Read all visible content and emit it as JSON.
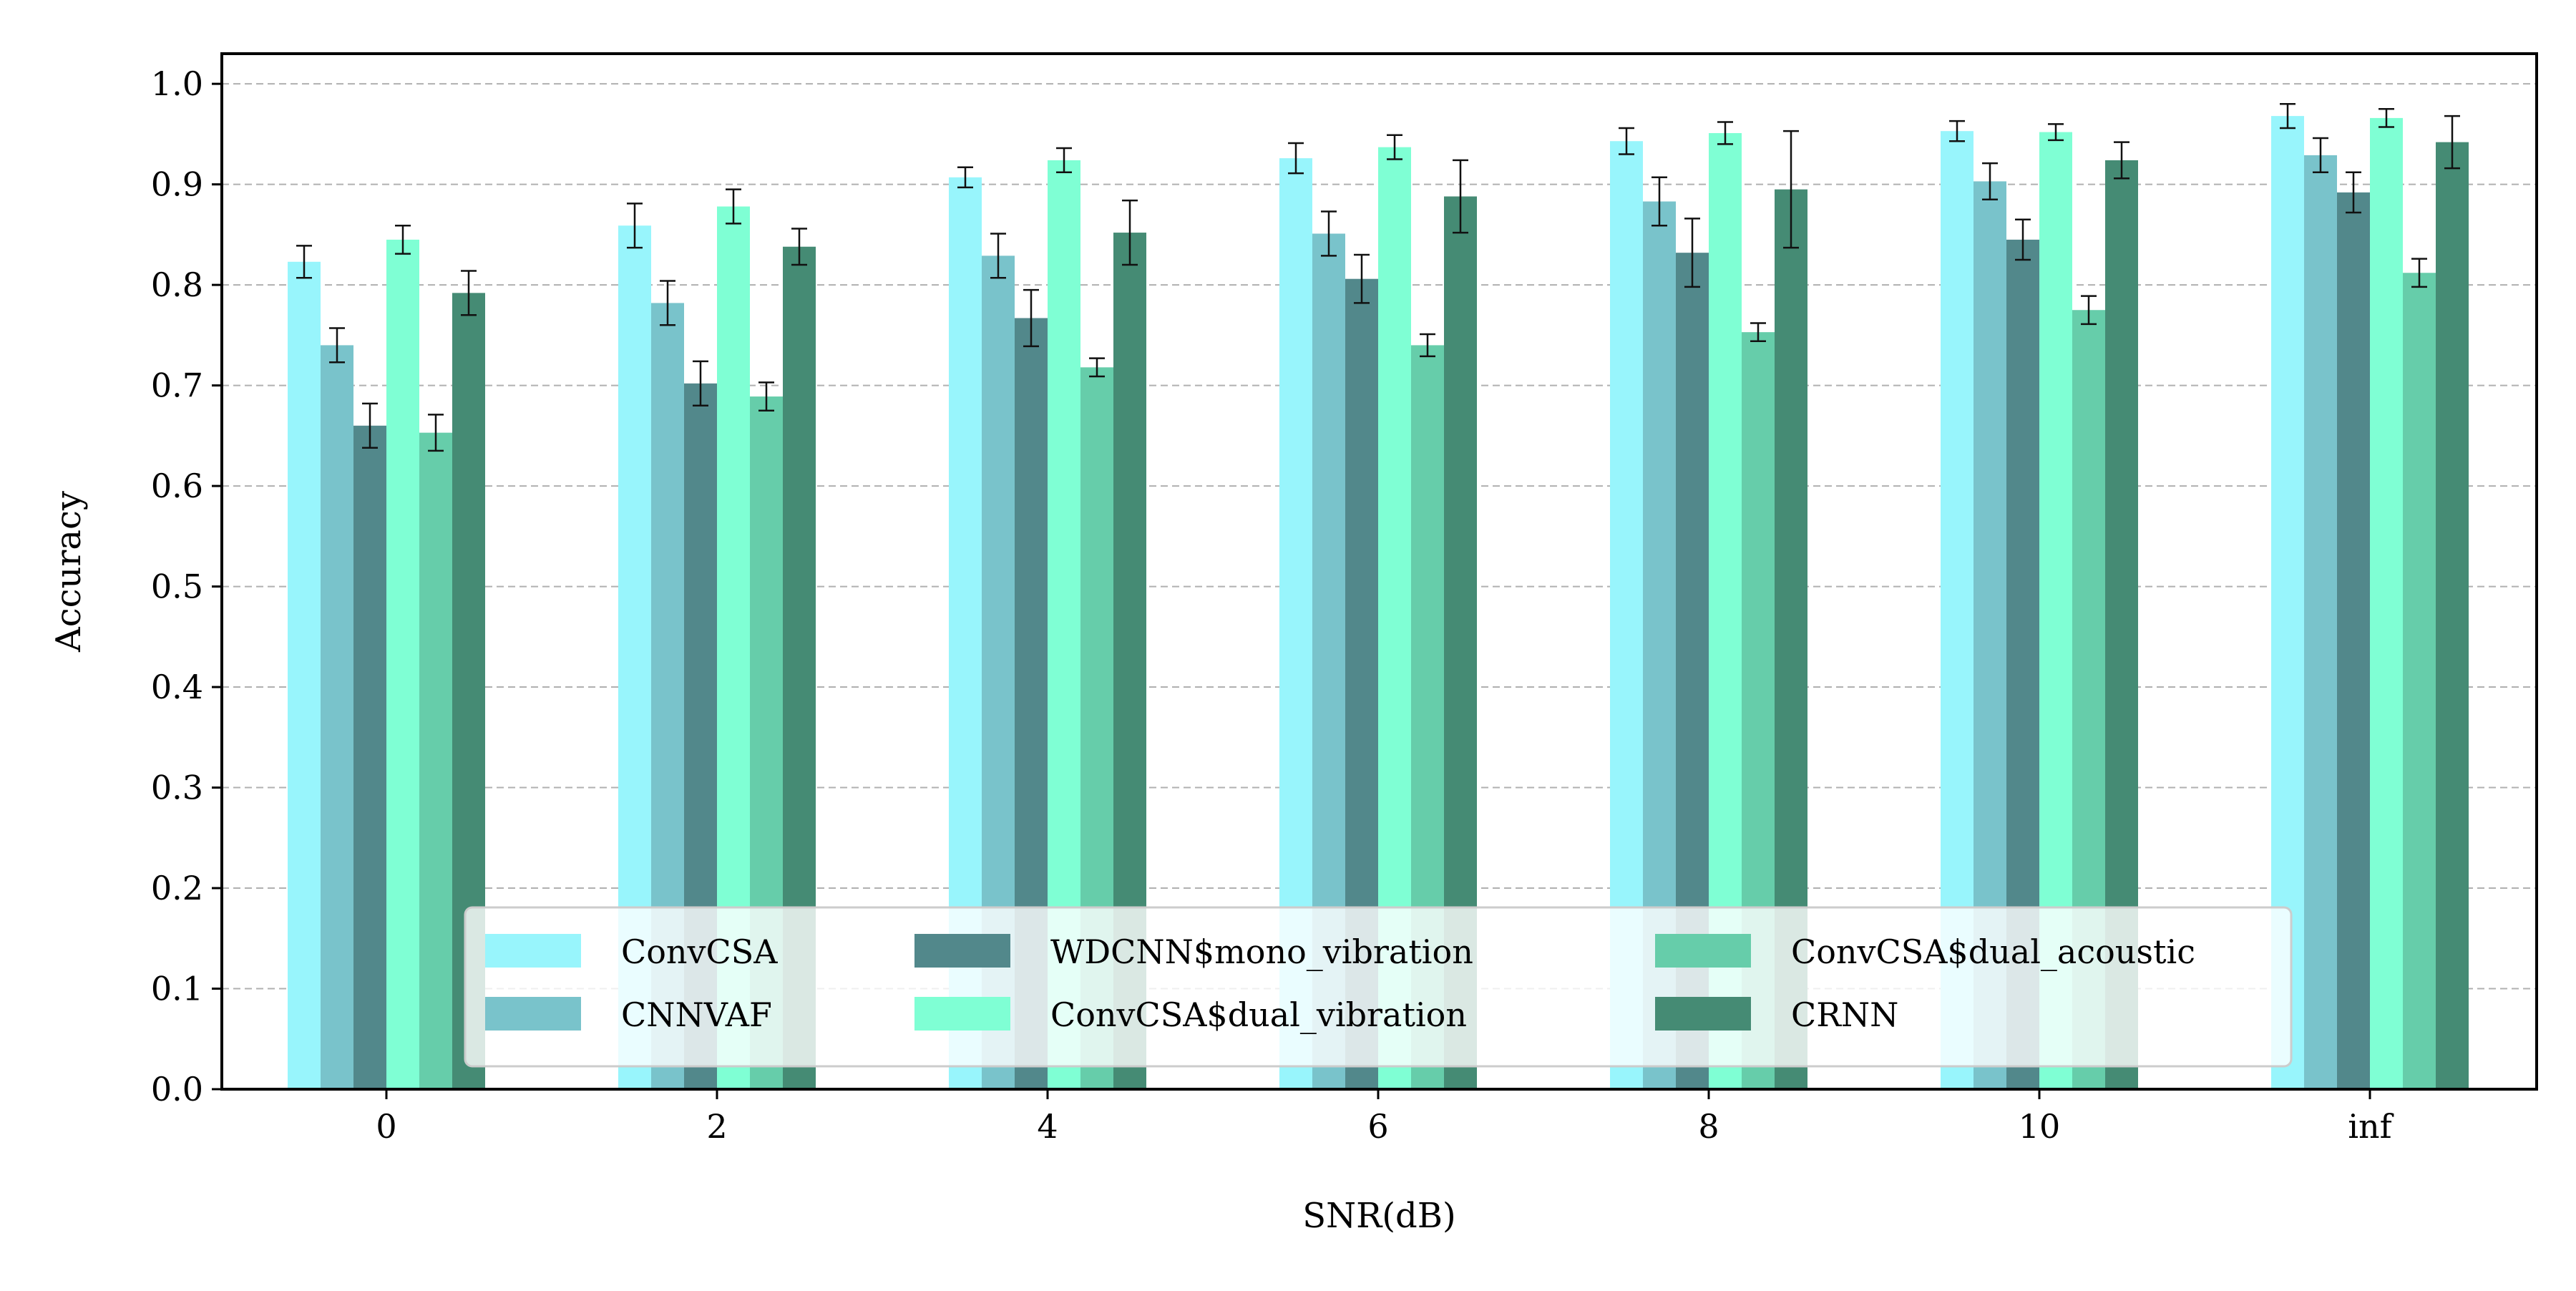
{
  "chart_data": {
    "type": "bar",
    "title": "",
    "xlabel": "SNR(dB)",
    "ylabel": "Accuracy",
    "categories": [
      "0",
      "2",
      "4",
      "6",
      "8",
      "10",
      "inf"
    ],
    "ylim": [
      0.0,
      1.03
    ],
    "yticks": [
      0.0,
      0.1,
      0.2,
      0.3,
      0.4,
      0.5,
      0.6,
      0.7,
      0.8,
      0.9,
      1.0
    ],
    "ytick_labels": [
      "0.0",
      "0.1",
      "0.2",
      "0.3",
      "0.4",
      "0.5",
      "0.6",
      "0.7",
      "0.8",
      "0.9",
      "1.0"
    ],
    "grid": "horizontal dashed",
    "legend_position": "lower-center",
    "legend_columns": 3,
    "series": [
      {
        "name": "ConvCSA",
        "color": "#98F5FC",
        "values": [
          0.823,
          0.859,
          0.907,
          0.926,
          0.943,
          0.953,
          0.968
        ],
        "errors": [
          0.016,
          0.022,
          0.01,
          0.015,
          0.013,
          0.01,
          0.012
        ]
      },
      {
        "name": "CNNVAF",
        "color": "#79C3CB",
        "values": [
          0.74,
          0.782,
          0.829,
          0.851,
          0.883,
          0.903,
          0.929
        ],
        "errors": [
          0.017,
          0.022,
          0.022,
          0.022,
          0.024,
          0.018,
          0.017
        ]
      },
      {
        "name": "WDCNN$mono_vibration",
        "color": "#52888B",
        "values": [
          0.66,
          0.702,
          0.767,
          0.806,
          0.832,
          0.845,
          0.892
        ],
        "errors": [
          0.022,
          0.022,
          0.028,
          0.024,
          0.034,
          0.02,
          0.02
        ]
      },
      {
        "name": "ConvCSA$dual_vibration",
        "color": "#7FFFD4",
        "values": [
          0.845,
          0.878,
          0.924,
          0.937,
          0.951,
          0.952,
          0.966
        ],
        "errors": [
          0.014,
          0.017,
          0.012,
          0.012,
          0.011,
          0.008,
          0.009
        ]
      },
      {
        "name": "ConvCSA$dual_acoustic",
        "color": "#66CDAA",
        "values": [
          0.653,
          0.689,
          0.718,
          0.74,
          0.753,
          0.775,
          0.812
        ],
        "errors": [
          0.018,
          0.014,
          0.009,
          0.011,
          0.009,
          0.014,
          0.014
        ]
      },
      {
        "name": "CRNN",
        "color": "#458B74",
        "values": [
          0.792,
          0.838,
          0.852,
          0.888,
          0.895,
          0.924,
          0.942
        ],
        "errors": [
          0.022,
          0.018,
          0.032,
          0.036,
          0.058,
          0.018,
          0.026
        ]
      }
    ]
  }
}
